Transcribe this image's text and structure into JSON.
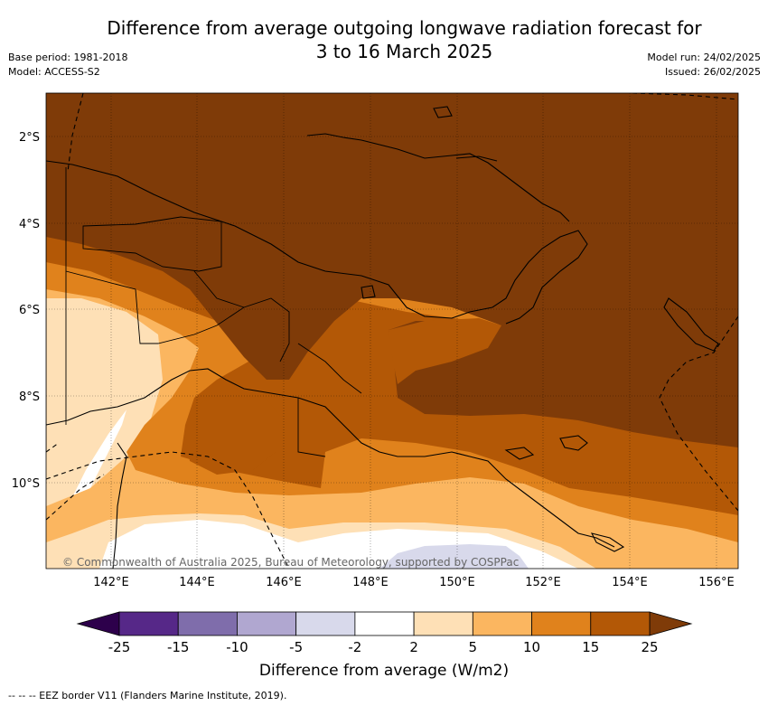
{
  "title_line1": "Difference from average outgoing longwave radiation forecast for",
  "title_line2": "3 to 16 March 2025",
  "meta_left": [
    "Base period: 1981-2018",
    "Model: ACCESS-S2"
  ],
  "meta_right": [
    "Model run: 24/02/2025",
    "Issued: 26/02/2025"
  ],
  "lat_labels": [
    "2°S",
    "4°S",
    "6°S",
    "8°S",
    "10°S"
  ],
  "lon_labels": [
    "142°E",
    "144°E",
    "146°E",
    "148°E",
    "150°E",
    "152°E",
    "154°E",
    "156°E"
  ],
  "copyright": "© Commonwealth of Australia 2025, Bureau of Meteorology, supported by COSPPac",
  "colorbar": {
    "ticks": [
      "-25",
      "-15",
      "-10",
      "-5",
      "-2",
      "2",
      "5",
      "10",
      "15",
      "25"
    ],
    "colors": [
      "#562888",
      "#7f6dab",
      "#b0a7d0",
      "#d8d9eb",
      "#ffffff",
      "#fee0b6",
      "#fbb660",
      "#e0821c",
      "#b35806"
    ],
    "under_color": "#2d004b",
    "over_color": "#7f3b08",
    "label": "Difference from average (W/m2)"
  },
  "footer": "--  --  -- EEZ border V11 (Flanders Marine Institute, 2019)."
}
